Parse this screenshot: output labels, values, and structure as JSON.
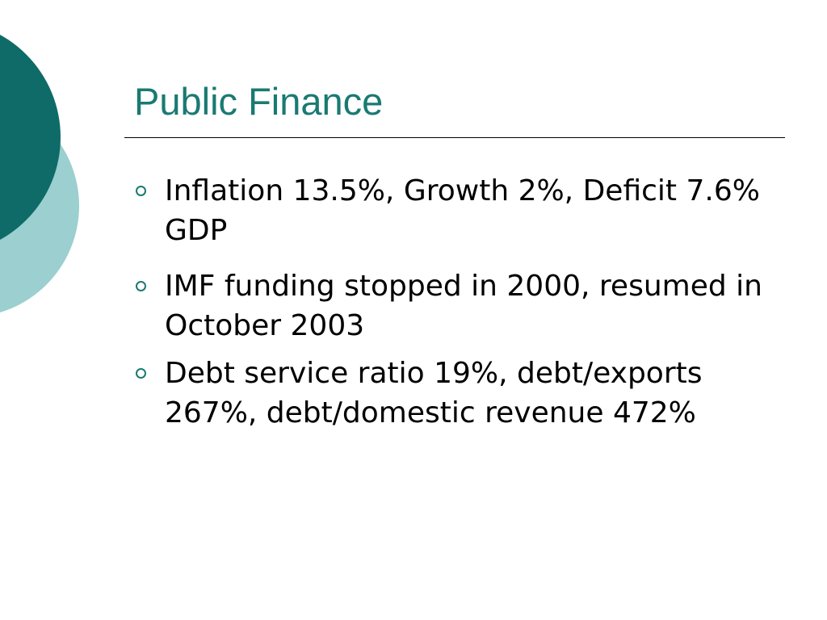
{
  "slide": {
    "title": "Public Finance",
    "bullets": [
      {
        "text": "Inflation 13.5%, Growth 2%, Deficit 7.6% GDP"
      },
      {
        "text": "IMF funding stopped in 2000, resumed in October 2003"
      },
      {
        "text": "Debt service ratio 19%, debt/exports 267%, debt/domestic revenue 472%"
      }
    ]
  },
  "colors": {
    "title": "#1a7a72",
    "bullet": "#1a7a72",
    "circle_dark": "#0e6b68",
    "circle_light": "#9ccfcf",
    "rule": "#000000"
  },
  "icons": {
    "bullet_marker": "hollow-circle-bullet"
  }
}
